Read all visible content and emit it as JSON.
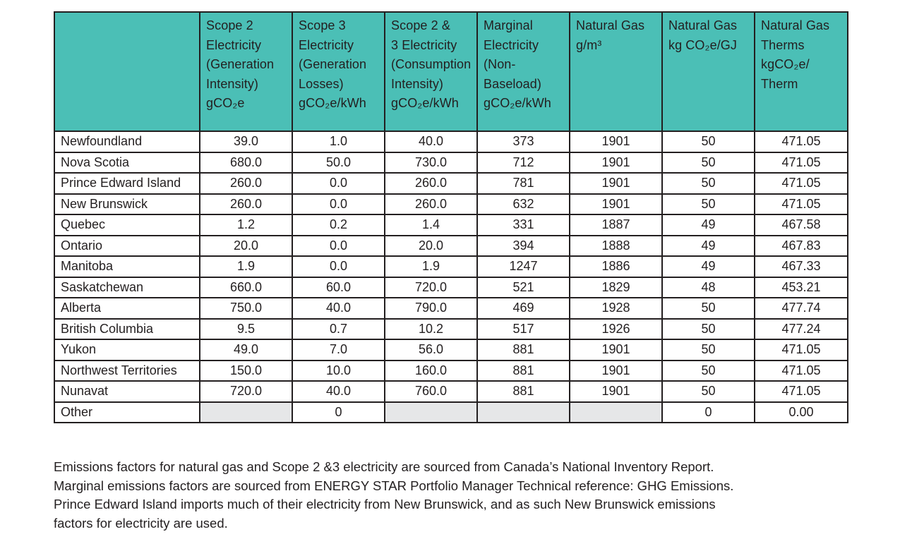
{
  "table": {
    "headers": [
      "",
      "Scope 2\nElectricity\n(Generation\nIntensity)\ngCO₂e",
      "Scope 3\nElectricity\n(Generation\nLosses)\ngCO₂e/kWh",
      "Scope 2 &\n3 Electricity\n(Consumption\nIntensity)\ngCO₂e/kWh",
      "Marginal\nElectricity\n(Non-\nBaseload)\ngCO₂e/kWh",
      "Natural Gas\ng/m³",
      "Natural Gas\nkg CO₂e/GJ",
      "Natural Gas\nTherms\nkgCO₂e/\nTherm"
    ],
    "rows": [
      {
        "region": "Newfoundland",
        "values": [
          "39.0",
          "1.0",
          "40.0",
          "373",
          "1901",
          "50",
          "471.05"
        ]
      },
      {
        "region": "Nova Scotia",
        "values": [
          "680.0",
          "50.0",
          "730.0",
          "712",
          "1901",
          "50",
          "471.05"
        ]
      },
      {
        "region": "Prince Edward Island",
        "values": [
          "260.0",
          "0.0",
          "260.0",
          "781",
          "1901",
          "50",
          "471.05"
        ]
      },
      {
        "region": "New Brunswick",
        "values": [
          "260.0",
          "0.0",
          "260.0",
          "632",
          "1901",
          "50",
          "471.05"
        ]
      },
      {
        "region": "Quebec",
        "values": [
          "1.2",
          "0.2",
          "1.4",
          "331",
          "1887",
          "49",
          "467.58"
        ]
      },
      {
        "region": "Ontario",
        "values": [
          "20.0",
          "0.0",
          "20.0",
          "394",
          "1888",
          "49",
          "467.83"
        ]
      },
      {
        "region": "Manitoba",
        "values": [
          "1.9",
          "0.0",
          "1.9",
          "1247",
          "1886",
          "49",
          "467.33"
        ]
      },
      {
        "region": "Saskatchewan",
        "values": [
          "660.0",
          "60.0",
          "720.0",
          "521",
          "1829",
          "48",
          "453.21"
        ]
      },
      {
        "region": "Alberta",
        "values": [
          "750.0",
          "40.0",
          "790.0",
          "469",
          "1928",
          "50",
          "477.74"
        ]
      },
      {
        "region": "British Columbia",
        "values": [
          "9.5",
          "0.7",
          "10.2",
          "517",
          "1926",
          "50",
          "477.24"
        ]
      },
      {
        "region": "Yukon",
        "values": [
          "49.0",
          "7.0",
          "56.0",
          "881",
          "1901",
          "50",
          "471.05"
        ]
      },
      {
        "region": "Northwest Territories",
        "values": [
          "150.0",
          "10.0",
          "160.0",
          "881",
          "1901",
          "50",
          "471.05"
        ]
      },
      {
        "region": "Nunavat",
        "values": [
          "720.0",
          "40.0",
          "760.0",
          "881",
          "1901",
          "50",
          "471.05"
        ]
      },
      {
        "region": "Other",
        "values": [
          "",
          "0",
          "",
          "",
          "",
          "0",
          "0.00"
        ]
      }
    ]
  },
  "footnote": {
    "lines": [
      "Emissions factors for natural gas and Scope 2 &3 electricity are sourced from Canada’s National Inventory Report.",
      "Marginal emissions factors are sourced from ENERGY STAR Portfolio Manager Technical reference: GHG Emissions.",
      "Prince Edward Island imports much of their electricity from New Brunswick, and as such New Brunswick emissions",
      "factors for electricity are used."
    ]
  },
  "colors": {
    "header_bg": "#4bbfb6",
    "empty_cell_bg": "#e6e7e8",
    "border": "#231f20",
    "text": "#231f20"
  }
}
